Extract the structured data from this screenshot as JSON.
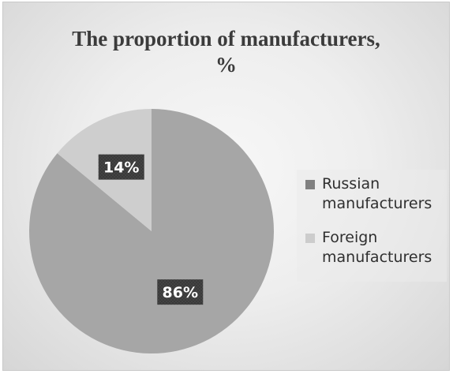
{
  "chart_data": {
    "type": "pie",
    "title": "The proportion of manufacturers, %",
    "title_lines": [
      "The proportion of manufacturers,",
      "%"
    ],
    "categories": [
      "Russian manufacturers",
      "Foreign manufacturers"
    ],
    "values": [
      86,
      14
    ],
    "data_labels": [
      "86%",
      "14%"
    ],
    "colors": [
      "#a6a6a6",
      "#cecece"
    ],
    "legend": {
      "placement": "right",
      "entries": [
        {
          "line1": "Russian",
          "line2": "manufacturers",
          "color": "#808080"
        },
        {
          "line1": "Foreign",
          "line2": "manufacturers",
          "color": "#cccccc"
        }
      ]
    },
    "label_style": {
      "background": "#3a3a3a",
      "text_color": "#ffffff"
    }
  }
}
